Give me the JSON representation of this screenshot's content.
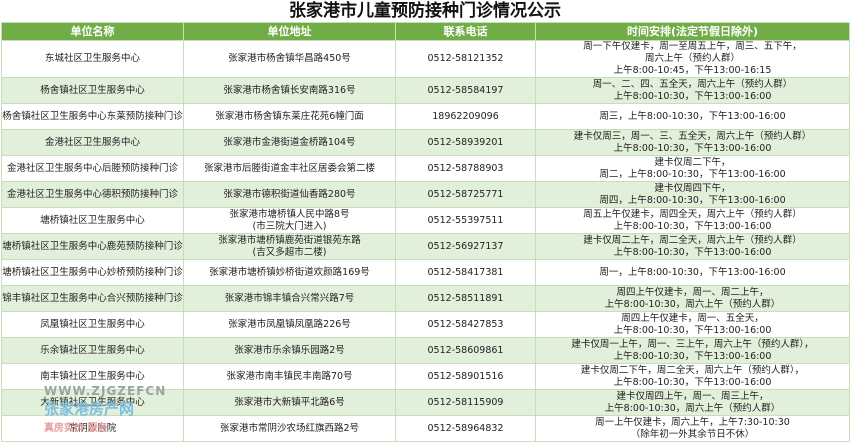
{
  "title": "张家港市儿童预防接种门诊情况公示",
  "table": {
    "header": [
      "单位名称",
      "单位地址",
      "联系电话",
      "时间安排(法定节假日除外)"
    ],
    "rows": [
      {
        "name": "东城社区卫生服务中心",
        "address": [
          "张家港市杨舍镇华昌路450号"
        ],
        "phone": "0512-58121352",
        "schedule": [
          "周一下午仅建卡，周一至周五上午，周三、五下午，",
          "周六上午（预约人群）",
          "上午8:00-10:45，下午13:00-16:15"
        ]
      },
      {
        "name": "杨舍镇社区卫生服务中心",
        "address": [
          "张家港市杨舍镇长安南路316号"
        ],
        "phone": "0512-58584197",
        "schedule": [
          "周一、二、四、五全天，周六上午（预约人群）",
          "上午8:00-10:30，下午13:00-16:00"
        ]
      },
      {
        "name": "杨舍镇社区卫生服务中心东莱预防接种门诊",
        "address": [
          "张家港市杨舍镇东莱庄花苑6幢门面"
        ],
        "phone": "18962209096",
        "schedule": [
          "周三，上午8:00-10:30，下午13:00-16:00"
        ]
      },
      {
        "name": "金港社区卫生服务中心",
        "address": [
          "张家港市金港街道金桥路104号"
        ],
        "phone": "0512-58939201",
        "schedule": [
          "建卡仅周三，周一、三、五全天，周六上午（预约人群）",
          "上午8:00-10:30，下午13:00-16:00"
        ]
      },
      {
        "name": "金港社区卫生服务中心后塍预防接种门诊",
        "address": [
          "张家港市后塍街道金丰社区居委会第二楼"
        ],
        "phone": "0512-58788903",
        "schedule": [
          "建卡仅周二下午，",
          "周二，上午8:00-10:30，下午13:00-16:00"
        ]
      },
      {
        "name": "金港社区卫生服务中心德积预防接种门诊",
        "address": [
          "张家港市德积街道仙香路280号"
        ],
        "phone": "0512-58725771",
        "schedule": [
          "建卡仅周四下午，",
          "周四，上午8:00-10:30，下午13:00-16:00"
        ]
      },
      {
        "name": "塘桥镇社区卫生服务中心",
        "address": [
          "张家港市塘桥镇人民中路8号",
          "(市三院大门进入)"
        ],
        "phone": "0512-55397511",
        "schedule": [
          "周五上午仅建卡，周四全天，周六上午（预约人群）",
          "上午8:00-10:30，下午13:00-16:00"
        ]
      },
      {
        "name": "塘桥镇社区卫生服务中心鹿苑预防接种门诊",
        "address": [
          "张家港市塘桥镇鹿苑街道银苑东路",
          "(吉又多超市二楼)"
        ],
        "phone": "0512-56927137",
        "schedule": [
          "建卡仅周二上午，周二全天，周六上午（预约人群）",
          "上午8:00-10:30，下午13:00-16:00"
        ]
      },
      {
        "name": "塘桥镇社区卫生服务中心妙桥预防接种门诊",
        "address": [
          "张家港市塘桥镇妙桥街道欢颜路169号"
        ],
        "phone": "0512-58417381",
        "schedule": [
          "周一，上午8:00-10:30，下午13:00-16:00"
        ]
      },
      {
        "name": "锦丰镇社区卫生服务中心合兴预防接种门诊",
        "address": [
          "张家港市锦丰镇合兴常兴路7号"
        ],
        "phone": "0512-58511891",
        "schedule": [
          "周四上午仅建卡，周一、周二上午，",
          "上午8:00-10:30，周六上午（预约人群）"
        ]
      },
      {
        "name": "凤凰镇社区卫生服务中心",
        "address": [
          "张家港市凤凰镇凤凰路226号"
        ],
        "phone": "0512-58427853",
        "schedule": [
          "周四上午仅建卡，周一、五全天，",
          "上午8:00-10:30，下午13:00-16:00"
        ]
      },
      {
        "name": "乐余镇社区卫生服务中心",
        "address": [
          "张家港市乐余镇乐园路2号"
        ],
        "phone": "0512-58609861",
        "schedule": [
          "建卡仅周一上午，周一、三上午，周六上午（预约人群），",
          "上午8:00-10:30，下午13:00-16:00"
        ]
      },
      {
        "name": "南丰镇社区卫生服务中心",
        "address": [
          "张家港市南丰镇民丰南路70号"
        ],
        "phone": "0512-58901516",
        "schedule": [
          "建卡仅周二下午，周二全天，周六上午（预约人群），",
          "上午8:00-10:30，下午13:00-16:00"
        ]
      },
      {
        "name": "大新镇社区卫生服务中心",
        "address": [
          "张家港市大新镇平北路6号"
        ],
        "phone": "0512-58115909",
        "schedule": [
          "建卡仅周四上午，周一、周三上午，",
          "上午8:00-10:30，周六上午（预约人群）"
        ]
      },
      {
        "name": "常阴沙医院",
        "address": [
          "张家港市常阴沙农场红旗西路2号"
        ],
        "phone": "0512-58964832",
        "schedule": [
          "周一上午仅建卡，周六上午，上午7:30-10:30",
          "（除年初一外其余节日不休）"
        ]
      }
    ]
  },
  "watermark": [
    "WWW.ZJGZEFCN",
    "张家港房产网",
    "真房实价 服务"
  ]
}
